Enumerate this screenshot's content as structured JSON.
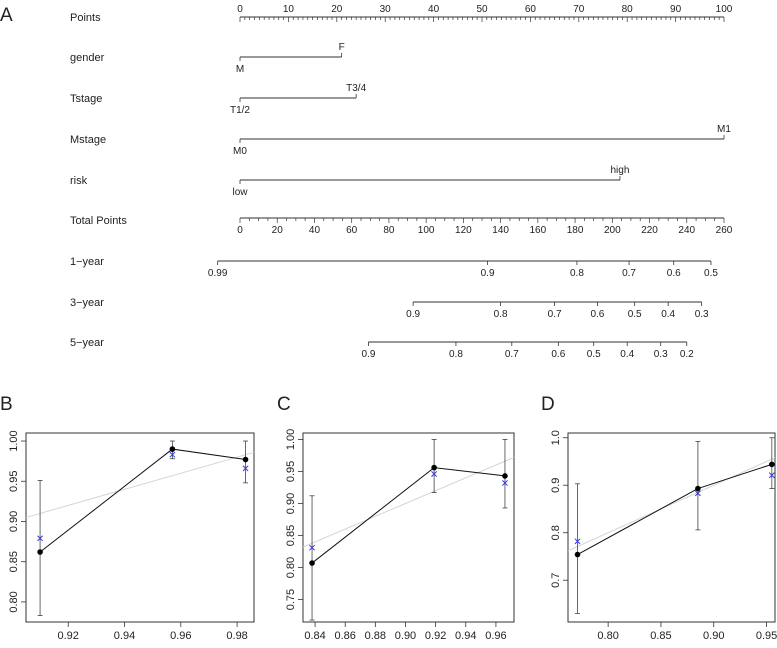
{
  "panel_labels": {
    "a": "A",
    "b": "B",
    "c": "C",
    "d": "D"
  },
  "chart_data": [
    {
      "type": "nomogram",
      "panel": "A",
      "rows": [
        {
          "label": "Points",
          "kind": "points",
          "min": 0,
          "max": 100,
          "major_step": 10,
          "minor_step": 1
        },
        {
          "label": "gender",
          "kind": "variable",
          "levels": [
            {
              "text": "M",
              "value": 0
            },
            {
              "text": "F",
              "value": 21
            }
          ]
        },
        {
          "label": "Tstage",
          "kind": "variable",
          "levels": [
            {
              "text": "T1/2",
              "value": 0
            },
            {
              "text": "T3/4",
              "value": 24
            }
          ]
        },
        {
          "label": "Mstage",
          "kind": "variable",
          "levels": [
            {
              "text": "M0",
              "value": 0
            },
            {
              "text": "M1",
              "value": 100
            }
          ]
        },
        {
          "label": "risk",
          "kind": "variable",
          "levels": [
            {
              "text": "low",
              "value": 0
            },
            {
              "text": "high",
              "value": 78.5
            }
          ]
        },
        {
          "label": "Total Points",
          "kind": "total",
          "min": 0,
          "max": 260,
          "major_step": 20,
          "minor_step": 5
        },
        {
          "label": "1−year",
          "kind": "probability",
          "ticks": [
            {
              "text": "0.99",
              "total": -12
            },
            {
              "text": "0.9",
              "total": 133
            },
            {
              "text": "0.8",
              "total": 181
            },
            {
              "text": "0.7",
              "total": 209
            },
            {
              "text": "0.6",
              "total": 233
            },
            {
              "text": "0.5",
              "total": 253
            }
          ]
        },
        {
          "label": "3−year",
          "kind": "probability",
          "ticks": [
            {
              "text": "0.9",
              "total": 93
            },
            {
              "text": "0.8",
              "total": 140
            },
            {
              "text": "0.7",
              "total": 169
            },
            {
              "text": "0.6",
              "total": 192
            },
            {
              "text": "0.5",
              "total": 212
            },
            {
              "text": "0.4",
              "total": 230
            },
            {
              "text": "0.3",
              "total": 248
            }
          ]
        },
        {
          "label": "5−year",
          "kind": "probability",
          "ticks": [
            {
              "text": "0.9",
              "total": 69
            },
            {
              "text": "0.8",
              "total": 116
            },
            {
              "text": "0.7",
              "total": 146
            },
            {
              "text": "0.6",
              "total": 171
            },
            {
              "text": "0.5",
              "total": 190
            },
            {
              "text": "0.4",
              "total": 208
            },
            {
              "text": "0.3",
              "total": 226
            },
            {
              "text": "0.2",
              "total": 240
            }
          ]
        }
      ]
    },
    {
      "type": "calibration",
      "panel": "B",
      "xlim": [
        0.905,
        0.986
      ],
      "ylim": [
        0.775,
        1.01
      ],
      "xticks": [
        0.92,
        0.94,
        0.96,
        0.98
      ],
      "yticks": [
        0.8,
        0.85,
        0.9,
        0.95,
        1.0
      ],
      "x_decimals": 2,
      "y_decimals": 2,
      "observed": [
        {
          "x": 0.91,
          "y": 0.862,
          "lo": 0.783,
          "hi": 0.951
        },
        {
          "x": 0.957,
          "y": 0.99,
          "lo": 0.978,
          "hi": 1.0
        },
        {
          "x": 0.983,
          "y": 0.977,
          "lo": 0.948,
          "hi": 1.0
        }
      ],
      "bias_corrected": [
        {
          "x": 0.91,
          "y": 0.879
        },
        {
          "x": 0.957,
          "y": 0.983
        },
        {
          "x": 0.983,
          "y": 0.966
        }
      ],
      "ideal": [
        [
          0.905,
          0.905
        ],
        [
          0.986,
          0.986
        ]
      ]
    },
    {
      "type": "calibration",
      "panel": "C",
      "xlim": [
        0.832,
        0.972
      ],
      "ylim": [
        0.715,
        1.01
      ],
      "xticks": [
        0.84,
        0.86,
        0.88,
        0.9,
        0.92,
        0.94,
        0.96
      ],
      "yticks": [
        0.75,
        0.8,
        0.85,
        0.9,
        0.95,
        1.0
      ],
      "x_decimals": 2,
      "y_decimals": 2,
      "observed": [
        {
          "x": 0.838,
          "y": 0.807,
          "lo": 0.718,
          "hi": 0.912
        },
        {
          "x": 0.919,
          "y": 0.956,
          "lo": 0.917,
          "hi": 1.0
        },
        {
          "x": 0.966,
          "y": 0.943,
          "lo": 0.893,
          "hi": 1.0
        }
      ],
      "bias_corrected": [
        {
          "x": 0.838,
          "y": 0.831
        },
        {
          "x": 0.919,
          "y": 0.946
        },
        {
          "x": 0.966,
          "y": 0.932
        }
      ],
      "ideal": [
        [
          0.832,
          0.832
        ],
        [
          0.972,
          0.972
        ]
      ]
    },
    {
      "type": "calibration",
      "panel": "D",
      "xlim": [
        0.762,
        0.958
      ],
      "ylim": [
        0.612,
        1.01
      ],
      "xticks": [
        0.8,
        0.85,
        0.9,
        0.95
      ],
      "yticks": [
        0.7,
        0.8,
        0.9,
        1.0
      ],
      "x_decimals": 2,
      "y_decimals": 1,
      "observed": [
        {
          "x": 0.771,
          "y": 0.754,
          "lo": 0.63,
          "hi": 0.903
        },
        {
          "x": 0.885,
          "y": 0.893,
          "lo": 0.806,
          "hi": 0.992
        },
        {
          "x": 0.955,
          "y": 0.944,
          "lo": 0.893,
          "hi": 1.0
        }
      ],
      "bias_corrected": [
        {
          "x": 0.771,
          "y": 0.782
        },
        {
          "x": 0.885,
          "y": 0.883
        },
        {
          "x": 0.955,
          "y": 0.921
        }
      ],
      "ideal": [
        [
          0.762,
          0.762
        ],
        [
          0.958,
          0.958
        ]
      ]
    }
  ]
}
